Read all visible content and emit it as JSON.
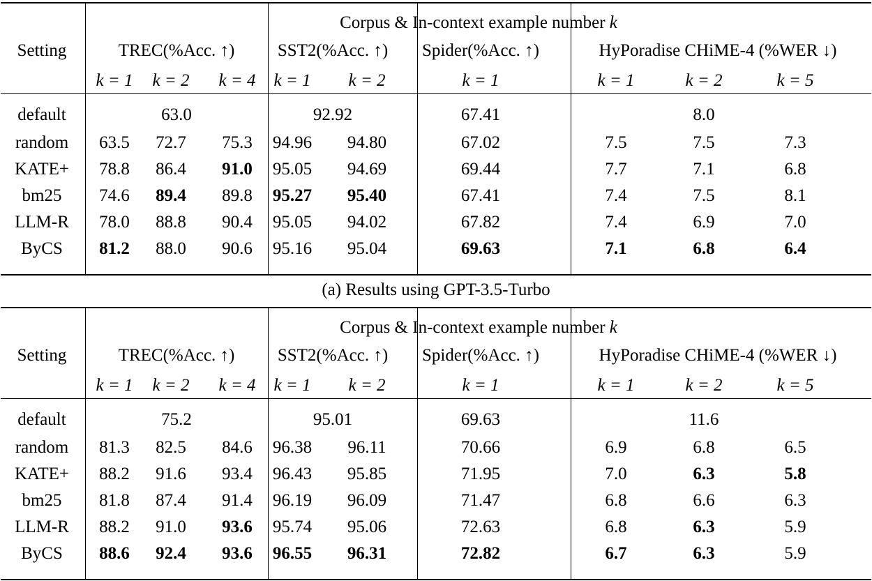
{
  "tables": [
    {
      "corpus_header": "Corpus & In-context example number ",
      "corpus_k": "k",
      "setting_label": "Setting",
      "groups": [
        "TREC(%Acc. ↑)",
        "SST2(%Acc. ↑)",
        "Spider(%Acc. ↑)",
        "HyPoradise CHiME-4 (%WER ↓)"
      ],
      "k_labels": [
        "k = 1",
        "k = 2",
        "k = 4",
        "k = 1",
        "k = 2",
        "k = 1",
        "k = 1",
        "k = 2",
        "k = 5"
      ],
      "default_row": {
        "label": "default",
        "trec": "63.0",
        "sst2": "92.92",
        "spider": "67.41",
        "hyp": "8.0"
      },
      "rows": [
        {
          "label": "random",
          "values": [
            "63.5",
            "72.7",
            "75.3",
            "94.96",
            "94.80",
            "67.02",
            "7.5",
            "7.5",
            "7.3"
          ],
          "bold": []
        },
        {
          "label": "KATE+",
          "values": [
            "78.8",
            "86.4",
            "91.0",
            "95.05",
            "94.69",
            "69.44",
            "7.7",
            "7.1",
            "6.8"
          ],
          "bold": [
            2
          ]
        },
        {
          "label": "bm25",
          "values": [
            "74.6",
            "89.4",
            "89.8",
            "95.27",
            "95.40",
            "67.41",
            "7.4",
            "7.5",
            "8.1"
          ],
          "bold": [
            1,
            3,
            4
          ]
        },
        {
          "label": "LLM-R",
          "values": [
            "78.0",
            "88.8",
            "90.4",
            "95.05",
            "94.02",
            "67.82",
            "7.4",
            "6.9",
            "7.0"
          ],
          "bold": []
        },
        {
          "label": "ByCS",
          "values": [
            "81.2",
            "88.0",
            "90.6",
            "95.16",
            "95.04",
            "69.63",
            "7.1",
            "6.8",
            "6.4"
          ],
          "bold": [
            0,
            5,
            6,
            7,
            8
          ]
        }
      ]
    },
    {
      "corpus_header": "Corpus & In-context example number ",
      "corpus_k": "k",
      "setting_label": "Setting",
      "groups": [
        "TREC(%Acc. ↑)",
        "SST2(%Acc. ↑)",
        "Spider(%Acc. ↑)",
        "HyPoradise CHiME-4 (%WER ↓)"
      ],
      "k_labels": [
        "k = 1",
        "k = 2",
        "k = 4",
        "k = 1",
        "k = 2",
        "k = 1",
        "k = 1",
        "k = 2",
        "k = 5"
      ],
      "default_row": {
        "label": "default",
        "trec": "75.2",
        "sst2": "95.01",
        "spider": "69.63",
        "hyp": "11.6"
      },
      "rows": [
        {
          "label": "random",
          "values": [
            "81.3",
            "82.5",
            "84.6",
            "96.38",
            "96.11",
            "70.66",
            "6.9",
            "6.8",
            "6.5"
          ],
          "bold": []
        },
        {
          "label": "KATE+",
          "values": [
            "88.2",
            "91.6",
            "93.4",
            "96.43",
            "95.85",
            "71.95",
            "7.0",
            "6.3",
            "5.8"
          ],
          "bold": [
            7,
            8
          ]
        },
        {
          "label": "bm25",
          "values": [
            "81.8",
            "87.4",
            "91.4",
            "96.19",
            "96.09",
            "71.47",
            "6.8",
            "6.6",
            "6.3"
          ],
          "bold": []
        },
        {
          "label": "LLM-R",
          "values": [
            "88.2",
            "91.0",
            "93.6",
            "95.74",
            "95.06",
            "72.63",
            "6.8",
            "6.3",
            "5.9"
          ],
          "bold": [
            2,
            7
          ]
        },
        {
          "label": "ByCS",
          "values": [
            "88.6",
            "92.4",
            "93.6",
            "96.55",
            "96.31",
            "72.82",
            "6.7",
            "6.3",
            "5.9"
          ],
          "bold": [
            0,
            1,
            2,
            3,
            4,
            5,
            6,
            7
          ]
        }
      ]
    }
  ],
  "caption": "(a) Results using GPT-3.5-Turbo"
}
